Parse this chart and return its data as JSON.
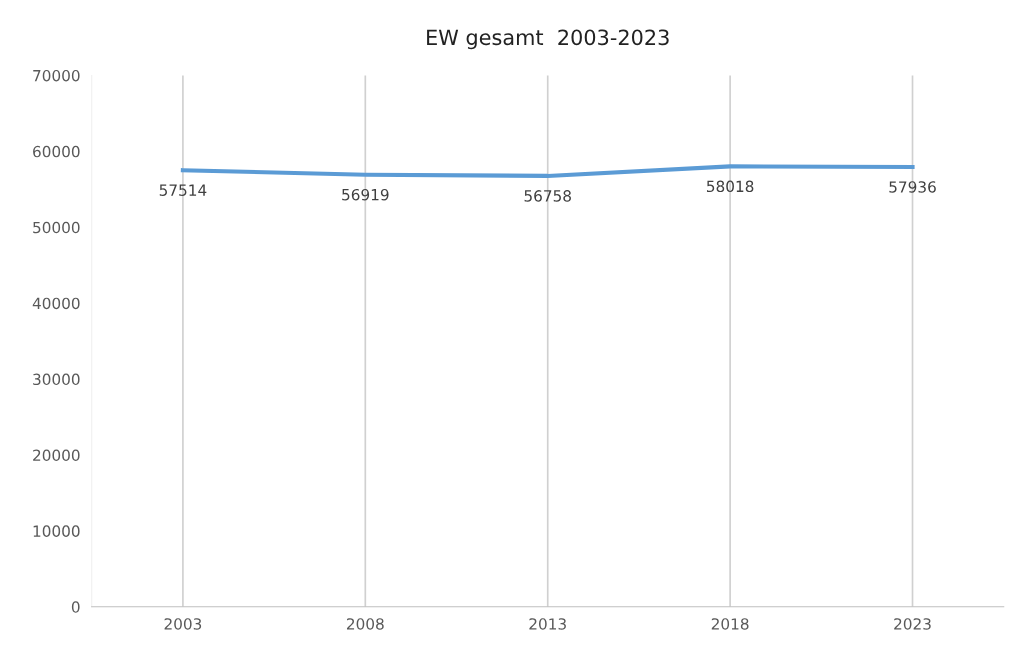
{
  "chart_data": {
    "type": "line",
    "title": "EW gesamt  2003-2023",
    "categories": [
      "2003",
      "2008",
      "2013",
      "2018",
      "2023"
    ],
    "series": [
      {
        "color": "#5b9bd5",
        "values": [
          57514,
          56919,
          56758,
          58018,
          57936
        ]
      }
    ],
    "ylim": [
      0,
      70000
    ],
    "yticks": [
      0,
      10000,
      20000,
      30000,
      40000,
      50000,
      60000,
      70000
    ],
    "grid": "x",
    "data_labels": true,
    "marker": "none",
    "line_style": "solid"
  }
}
